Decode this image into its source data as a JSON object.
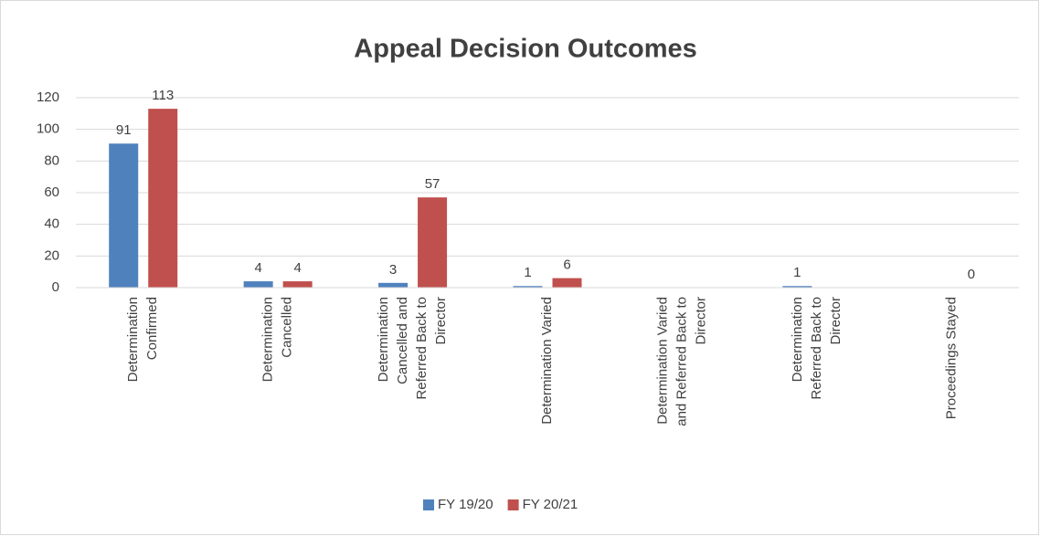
{
  "chart_data": {
    "type": "bar",
    "title": "Appeal Decision Outcomes",
    "categories": [
      "Determination Confirmed",
      "Determination Cancelled",
      "Determination Cancelled and Referred Back to Director",
      "Determination Varied",
      "Determination Varied and Referred Back to Director",
      "Determination Referred Back to Director",
      "Proceedings Stayed"
    ],
    "series": [
      {
        "name": "FY 19/20",
        "color": "#4f81bd",
        "values": [
          91,
          4,
          3,
          1,
          null,
          1,
          null
        ]
      },
      {
        "name": "FY 20/21",
        "color": "#c0504d",
        "values": [
          113,
          4,
          57,
          6,
          null,
          null,
          0
        ]
      }
    ],
    "ylim": [
      0,
      120
    ],
    "yticks": [
      0,
      20,
      40,
      60,
      80,
      100,
      120
    ],
    "grid": true,
    "legend": "bottom"
  }
}
